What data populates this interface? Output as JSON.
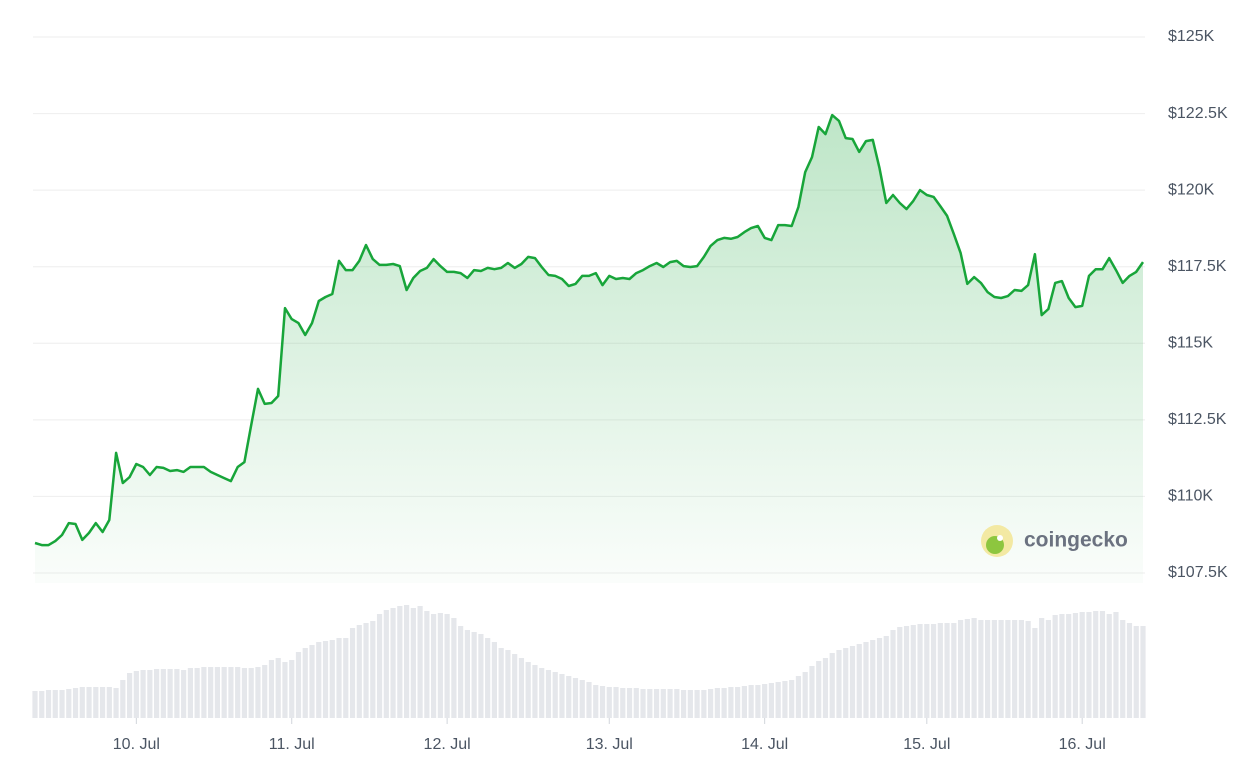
{
  "chart_data": {
    "type": "line",
    "color": "#18a53a",
    "volume_color": "#e5e7eb",
    "grid": true,
    "watermark": "coingecko",
    "ylim": [
      107500,
      125000
    ],
    "yticks": [
      {
        "value": 107500,
        "label": "$107.5K"
      },
      {
        "value": 110000,
        "label": "$110K"
      },
      {
        "value": 112500,
        "label": "$112.5K"
      },
      {
        "value": 115000,
        "label": "$115K"
      },
      {
        "value": 117500,
        "label": "$117.5K"
      },
      {
        "value": 120000,
        "label": "$120K"
      },
      {
        "value": 122500,
        "label": "$122.5K"
      },
      {
        "value": 125000,
        "label": "$125K"
      }
    ],
    "categories": [
      null,
      null,
      null,
      null,
      null,
      null,
      null,
      null,
      null,
      null,
      null,
      null,
      null,
      null,
      null,
      "10. Jul",
      null,
      null,
      null,
      null,
      null,
      null,
      null,
      null,
      null,
      null,
      null,
      null,
      null,
      null,
      null,
      null,
      null,
      null,
      null,
      null,
      null,
      null,
      "11. Jul",
      null,
      null,
      null,
      null,
      null,
      null,
      null,
      null,
      null,
      null,
      null,
      null,
      null,
      null,
      null,
      null,
      null,
      null,
      null,
      null,
      null,
      null,
      "12. Jul",
      null,
      null,
      null,
      null,
      null,
      null,
      null,
      null,
      null,
      null,
      null,
      null,
      null,
      null,
      null,
      null,
      null,
      null,
      null,
      null,
      null,
      null,
      null,
      "13. Jul",
      null,
      null,
      null,
      null,
      null,
      null,
      null,
      null,
      null,
      null,
      null,
      null,
      null,
      null,
      null,
      null,
      null,
      null,
      null,
      null,
      null,
      null,
      "14. Jul",
      null,
      null,
      null,
      null,
      null,
      null,
      null,
      null,
      null,
      null,
      null,
      null,
      null,
      null,
      null,
      null,
      null,
      null,
      null,
      null,
      null,
      null,
      null,
      "15. Jul",
      null,
      null,
      null,
      null,
      null,
      null,
      null,
      null,
      null,
      null,
      null,
      null,
      null,
      null,
      null,
      null,
      null,
      null,
      null,
      null,
      null,
      null,
      "16. Jul",
      null,
      null,
      null,
      null,
      null,
      null,
      null,
      null,
      null
    ],
    "values": [
      108480,
      108410,
      108410,
      108540,
      108740,
      109130,
      109100,
      108580,
      108810,
      109130,
      108840,
      109230,
      111420,
      110440,
      110630,
      111060,
      110960,
      110700,
      110960,
      110930,
      110830,
      110860,
      110800,
      110960,
      110960,
      110960,
      110800,
      110700,
      110600,
      110500,
      110960,
      111120,
      112330,
      113510,
      113020,
      113050,
      113280,
      116150,
      115790,
      115660,
      115270,
      115660,
      116380,
      116510,
      116610,
      117690,
      117390,
      117390,
      117690,
      118210,
      117750,
      117560,
      117560,
      117590,
      117520,
      116740,
      117130,
      117360,
      117460,
      117750,
      117520,
      117330,
      117330,
      117290,
      117130,
      117390,
      117360,
      117460,
      117420,
      117460,
      117620,
      117460,
      117590,
      117820,
      117780,
      117490,
      117230,
      117200,
      117100,
      116870,
      116940,
      117200,
      117200,
      117290,
      116900,
      117200,
      117100,
      117130,
      117100,
      117290,
      117390,
      117520,
      117620,
      117490,
      117650,
      117690,
      117520,
      117490,
      117520,
      117820,
      118180,
      118370,
      118440,
      118410,
      118470,
      118630,
      118760,
      118830,
      118440,
      118370,
      118860,
      118860,
      118830,
      119450,
      120590,
      121080,
      122060,
      121830,
      122450,
      122260,
      121700,
      121670,
      121250,
      121600,
      121640,
      120720,
      119580,
      119840,
      119580,
      119380,
      119650,
      120000,
      119840,
      119780,
      119480,
      119160,
      118570,
      117950,
      116940,
      117160,
      116970,
      116670,
      116510,
      116480,
      116540,
      116740,
      116710,
      116900,
      117910,
      115920,
      116120,
      116970,
      117030,
      116480,
      116180,
      116220,
      117200,
      117420,
      117420,
      117780,
      117390,
      116970,
      117200,
      117330,
      117650
    ],
    "volumes": [
      27,
      27,
      28,
      28,
      28,
      29,
      30,
      31,
      31,
      31,
      31,
      31,
      30,
      38,
      45,
      47,
      48,
      48,
      49,
      49,
      49,
      49,
      48,
      50,
      50,
      51,
      51,
      51,
      51,
      51,
      51,
      50,
      50,
      51,
      53,
      58,
      60,
      56,
      58,
      66,
      70,
      73,
      76,
      77,
      78,
      80,
      80,
      90,
      93,
      95,
      97,
      104,
      108,
      110,
      112,
      113,
      110,
      112,
      107,
      104,
      105,
      104,
      100,
      92,
      88,
      86,
      84,
      80,
      76,
      70,
      68,
      64,
      60,
      56,
      53,
      50,
      48,
      46,
      44,
      42,
      40,
      38,
      36,
      33,
      32,
      31,
      31,
      30,
      30,
      30,
      29,
      29,
      29,
      29,
      29,
      29,
      28,
      28,
      28,
      28,
      29,
      30,
      30,
      31,
      31,
      32,
      33,
      33,
      34,
      35,
      36,
      37,
      38,
      42,
      46,
      52,
      57,
      60,
      65,
      68,
      70,
      72,
      74,
      76,
      78,
      80,
      82,
      88,
      91,
      92,
      93,
      94,
      94,
      94,
      95,
      95,
      95,
      98,
      99,
      100,
      98,
      98,
      98,
      98,
      98,
      98,
      98,
      97,
      90,
      100,
      98,
      103,
      104,
      104,
      105,
      106,
      106,
      107,
      107,
      104,
      106,
      98,
      95,
      92,
      92
    ]
  }
}
